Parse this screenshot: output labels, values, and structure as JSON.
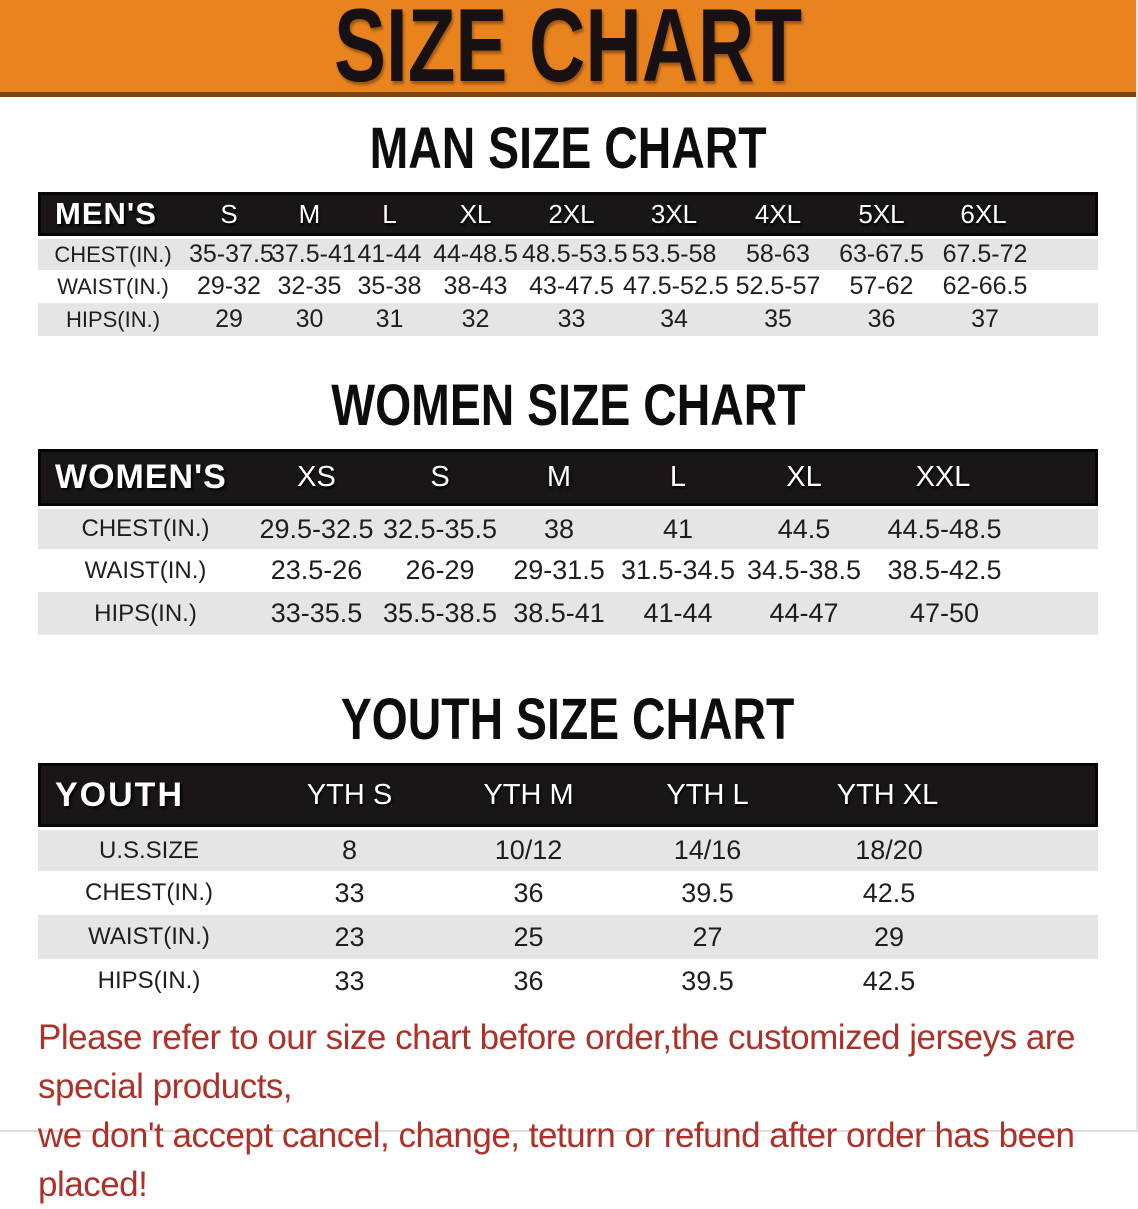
{
  "banner": {
    "title": "SIZE CHART"
  },
  "colors": {
    "banner_bg": "#E8831E",
    "banner_border": "#7C440F",
    "table_header_bg": "#1A1517",
    "row_stripe": "#E6E5E6",
    "disclaimer_red": "#AD3129"
  },
  "sections": [
    {
      "id": "men",
      "heading": "MAN SIZE CHART",
      "table": {
        "label": "MEN'S",
        "columns": [
          "S",
          "M",
          "L",
          "XL",
          "2XL",
          "3XL",
          "4XL",
          "5XL",
          "6XL"
        ],
        "rows": [
          {
            "label": "CHEST(IN.)",
            "values": [
              "35-37.5",
              "37.5-41",
              "41-44",
              "44-48.5",
              "48.5-53.5",
              "53.5-58",
              "58-63",
              "63-67.5",
              "67.5-72"
            ]
          },
          {
            "label": "WAIST(IN.)",
            "values": [
              "29-32",
              "32-35",
              "35-38",
              "38-43",
              "43-47.5",
              "47.5-52.5",
              "52.5-57",
              "57-62",
              "62-66.5"
            ]
          },
          {
            "label": "HIPS(IN.)",
            "values": [
              "29",
              "30",
              "31",
              "32",
              "33",
              "34",
              "35",
              "36",
              "37"
            ]
          }
        ]
      }
    },
    {
      "id": "women",
      "heading": "WOMEN SIZE CHART",
      "table": {
        "label": "WOMEN'S",
        "columns": [
          "XS",
          "S",
          "M",
          "L",
          "XL",
          "XXL"
        ],
        "rows": [
          {
            "label": "CHEST(IN.)",
            "values": [
              "29.5-32.5",
              "32.5-35.5",
              "38",
              "41",
              "44.5",
              "44.5-48.5"
            ]
          },
          {
            "label": "WAIST(IN.)",
            "values": [
              "23.5-26",
              "26-29",
              "29-31.5",
              "31.5-34.5",
              "34.5-38.5",
              "38.5-42.5"
            ]
          },
          {
            "label": "HIPS(IN.)",
            "values": [
              "33-35.5",
              "35.5-38.5",
              "38.5-41",
              "41-44",
              "44-47",
              "47-50"
            ]
          }
        ]
      }
    },
    {
      "id": "youth",
      "heading": "YOUTH SIZE CHART",
      "table": {
        "label": "YOUTH",
        "columns": [
          "YTH S",
          "YTH M",
          "YTH L",
          "YTH XL"
        ],
        "rows": [
          {
            "label": "U.S.SIZE",
            "values": [
              "8",
              "10/12",
              "14/16",
              "18/20"
            ]
          },
          {
            "label": "CHEST(IN.)",
            "values": [
              "33",
              "36",
              "39.5",
              "42.5"
            ]
          },
          {
            "label": "WAIST(IN.)",
            "values": [
              "23",
              "25",
              "27",
              "29"
            ]
          },
          {
            "label": "HIPS(IN.)",
            "values": [
              "33",
              "36",
              "39.5",
              "42.5"
            ]
          }
        ]
      }
    }
  ],
  "disclaimer": {
    "line1": "Please refer to our size chart before order,the customized jerseys are special products,",
    "line2": "we don't accept cancel, change, teturn or refund after order has been placed!"
  }
}
